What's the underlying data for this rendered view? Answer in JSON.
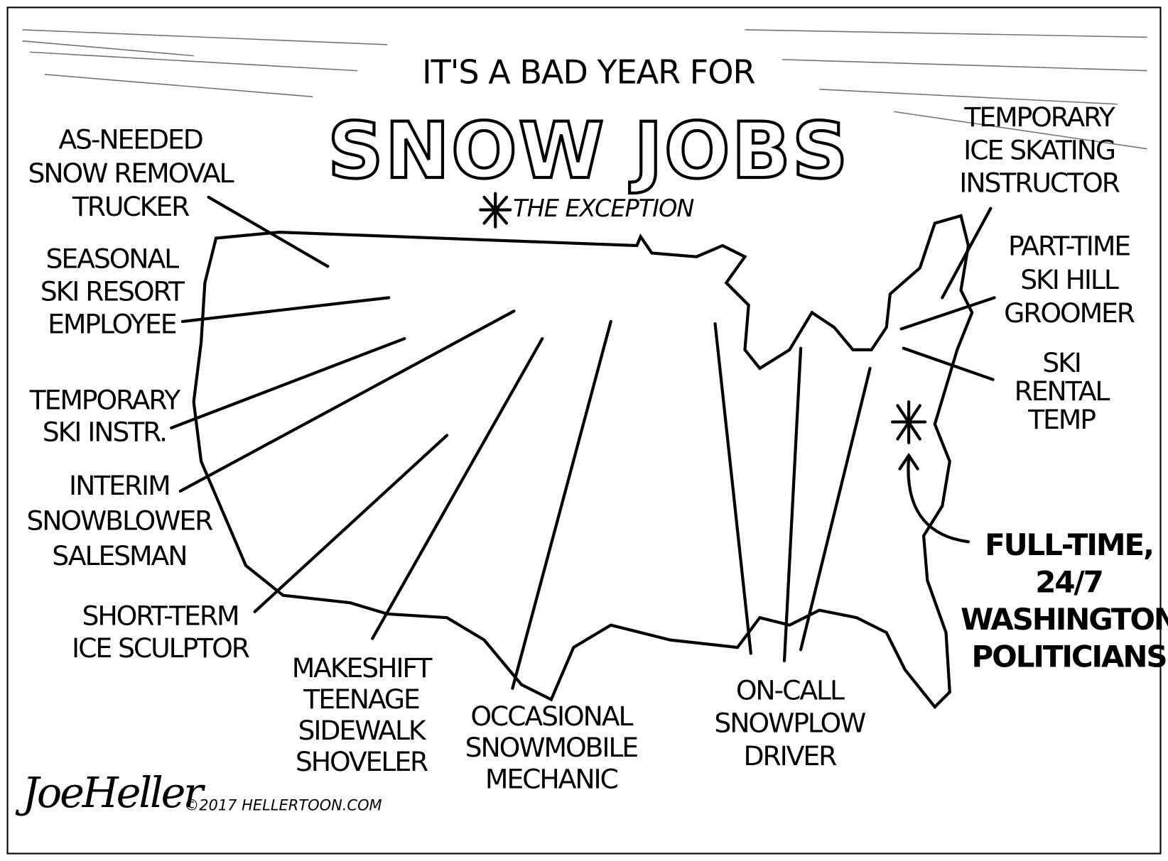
{
  "header": {
    "title_line": "IT'S A BAD YEAR FOR",
    "title": "SNOW JOBS",
    "note": "THE EXCEPTION"
  },
  "labels": [
    {
      "lines": [
        "AS-NEEDED",
        "SNOW REMOVAL",
        "TRUCKER"
      ]
    },
    {
      "lines": [
        "SEASONAL",
        "SKI RESORT",
        "EMPLOYEE"
      ]
    },
    {
      "lines": [
        "TEMPORARY",
        "SKI INSTR."
      ]
    },
    {
      "lines": [
        "INTERIM",
        "SNOWBLOWER",
        "SALESMAN"
      ]
    },
    {
      "lines": [
        "SHORT-TERM",
        "ICE SCULPTOR"
      ]
    },
    {
      "lines": [
        "MAKESHIFT",
        "TEENAGE",
        "SIDEWALK",
        "SHOVELER"
      ]
    },
    {
      "lines": [
        "OCCASIONAL",
        "SNOWMOBILE",
        "MECHANIC"
      ]
    },
    {
      "lines": [
        "ON-CALL",
        "SNOWPLOW",
        "DRIVER"
      ]
    },
    {
      "lines": [
        "TEMPORARY",
        "ICE SKATING",
        "INSTRUCTOR"
      ]
    },
    {
      "lines": [
        "PART-TIME",
        "SKI HILL",
        "GROOMER"
      ]
    },
    {
      "lines": [
        "SKI",
        "RENTAL",
        "TEMP"
      ]
    }
  ],
  "exception": {
    "lines": [
      "FULL-TIME,",
      "24/7",
      "WASHINGTON",
      "POLITICIANS"
    ]
  },
  "signature": "JoeHeller",
  "copyright": "©2017 HELLERTOON.COM"
}
